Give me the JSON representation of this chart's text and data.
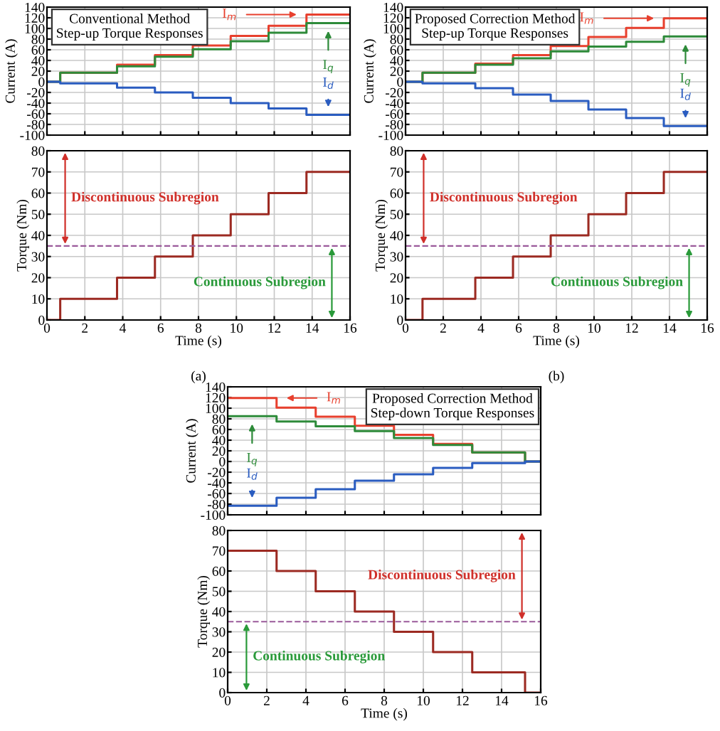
{
  "chart_data": [
    {
      "type": "step",
      "title": "Conventional Method\nStep-up Torque Responses",
      "ylabel": "Current (A)",
      "xlim": [
        0,
        16
      ],
      "xticks": [
        0,
        2,
        4,
        6,
        8,
        10,
        12,
        14,
        16
      ],
      "ylim": [
        -100,
        140
      ],
      "yticks": [
        -100,
        -80,
        -60,
        -40,
        -20,
        0,
        20,
        40,
        60,
        80,
        100,
        120,
        140
      ],
      "grid": true,
      "tick_labels": "y",
      "x": [
        0,
        0.7,
        3.7,
        5.7,
        7.7,
        9.7,
        11.7,
        13.7,
        16
      ],
      "series": [
        {
          "name": "I$_{m}$",
          "color": "#e8402e",
          "values": [
            0,
            17,
            32,
            50,
            68,
            86,
            105,
            126,
            126
          ]
        },
        {
          "name": "I$_{q}$",
          "color": "#2e8b3a",
          "values": [
            0,
            17,
            29,
            47,
            61,
            76,
            92,
            110,
            110
          ]
        },
        {
          "name": "I$_{d}$",
          "color": "#2a5cc0",
          "values": [
            0,
            -3,
            -11,
            -20,
            -30,
            -40,
            -50,
            -62,
            -62
          ]
        }
      ]
    },
    {
      "type": "step",
      "xlabel": "Time (s)",
      "ylabel": "Torque (Nm)",
      "xlim": [
        0,
        16
      ],
      "xticks": [
        0,
        2,
        4,
        6,
        8,
        10,
        12,
        14,
        16
      ],
      "ylim": [
        0,
        80
      ],
      "yticks": [
        0,
        10,
        20,
        30,
        40,
        50,
        60,
        70,
        80
      ],
      "grid": true,
      "x": [
        0,
        0.7,
        3.7,
        5.7,
        7.7,
        9.7,
        11.7,
        13.7,
        16
      ],
      "series": [
        {
          "color": "#9c2a22",
          "values": [
            0,
            10,
            20,
            30,
            40,
            50,
            60,
            70,
            70
          ]
        }
      ],
      "ref_lines": [
        {
          "axis": "y",
          "value": 35,
          "color": "#9a5a9a",
          "line_style": "dashed"
        }
      ],
      "annotations": [
        "Discontinuous Subregion",
        "Continuous Subregion",
        "(a)"
      ]
    },
    {
      "type": "step",
      "title": "Proposed Correction Method\nStep-up Torque Responses",
      "ylabel": "Current (A)",
      "xlim": [
        0,
        16
      ],
      "xticks": [
        0,
        2,
        4,
        6,
        8,
        10,
        12,
        14,
        16
      ],
      "ylim": [
        -100,
        140
      ],
      "yticks": [
        -100,
        -80,
        -60,
        -40,
        -20,
        0,
        20,
        40,
        60,
        80,
        100,
        120,
        140
      ],
      "grid": true,
      "tick_labels": "y",
      "x": [
        0,
        0.9,
        3.7,
        5.7,
        7.7,
        9.7,
        11.7,
        13.7,
        16
      ],
      "series": [
        {
          "name": "I$_{m}$",
          "color": "#e8402e",
          "values": [
            0,
            17,
            34,
            50,
            67,
            84,
            101,
            119,
            119
          ]
        },
        {
          "name": "I$_{q}$",
          "color": "#2e8b3a",
          "values": [
            0,
            17,
            32,
            44,
            57,
            66,
            75,
            85,
            85
          ]
        },
        {
          "name": "I$_{d}$",
          "color": "#2a5cc0",
          "values": [
            0,
            -3,
            -12,
            -24,
            -36,
            -52,
            -68,
            -83,
            -83
          ]
        }
      ]
    },
    {
      "type": "step",
      "xlabel": "Time (s)",
      "ylabel": "Torque (Nm)",
      "xlim": [
        0,
        16
      ],
      "xticks": [
        0,
        2,
        4,
        6,
        8,
        10,
        12,
        14,
        16
      ],
      "ylim": [
        0,
        80
      ],
      "yticks": [
        0,
        10,
        20,
        30,
        40,
        50,
        60,
        70,
        80
      ],
      "grid": true,
      "x": [
        0,
        0.9,
        3.7,
        5.7,
        7.7,
        9.7,
        11.7,
        13.7,
        16
      ],
      "series": [
        {
          "color": "#9c2a22",
          "values": [
            0,
            10,
            20,
            30,
            40,
            50,
            60,
            70,
            70
          ]
        }
      ],
      "ref_lines": [
        {
          "axis": "y",
          "value": 35,
          "color": "#9a5a9a",
          "line_style": "dashed"
        }
      ],
      "annotations": [
        "Discontinuous Subregion",
        "Continuous Subregion",
        "(b)"
      ]
    },
    {
      "type": "step",
      "title": "Proposed Correction Method\nStep-down Torque Responses",
      "ylabel": "Current (A)",
      "xlim": [
        0,
        16
      ],
      "xticks": [
        0,
        2,
        4,
        6,
        8,
        10,
        12,
        14,
        16
      ],
      "ylim": [
        -100,
        140
      ],
      "yticks": [
        -100,
        -80,
        -60,
        -40,
        -20,
        0,
        20,
        40,
        60,
        80,
        100,
        120,
        140
      ],
      "grid": true,
      "tick_labels": "y",
      "x": [
        0,
        2.5,
        4.5,
        6.5,
        8.5,
        10.5,
        12.5,
        15.2,
        16
      ],
      "series": [
        {
          "name": "I$_{m}$",
          "color": "#e8402e",
          "values": [
            119,
            101,
            84,
            67,
            50,
            33,
            17,
            0,
            0
          ]
        },
        {
          "name": "I$_{q}$",
          "color": "#2e8b3a",
          "values": [
            85,
            75,
            66,
            57,
            44,
            31,
            17,
            0,
            0
          ]
        },
        {
          "name": "I$_{d}$",
          "color": "#2a5cc0",
          "values": [
            -83,
            -68,
            -52,
            -36,
            -24,
            -12,
            -3,
            0,
            0
          ]
        }
      ]
    },
    {
      "type": "step",
      "xlabel": "Time (s)",
      "ylabel": "Torque (Nm)",
      "xlim": [
        0,
        16
      ],
      "xticks": [
        0,
        2,
        4,
        6,
        8,
        10,
        12,
        14,
        16
      ],
      "ylim": [
        0,
        80
      ],
      "yticks": [
        0,
        10,
        20,
        30,
        40,
        50,
        60,
        70,
        80
      ],
      "grid": true,
      "x": [
        0,
        2.5,
        4.5,
        6.5,
        8.5,
        10.5,
        12.5,
        15.2,
        16
      ],
      "series": [
        {
          "color": "#9c2a22",
          "values": [
            70,
            60,
            50,
            40,
            30,
            20,
            10,
            0,
            0
          ]
        }
      ],
      "ref_lines": [
        {
          "axis": "y",
          "value": 35,
          "color": "#9a5a9a",
          "line_style": "dashed"
        }
      ],
      "annotations": [
        "Discontinuous Subregion",
        "Continuous Subregion"
      ]
    }
  ]
}
